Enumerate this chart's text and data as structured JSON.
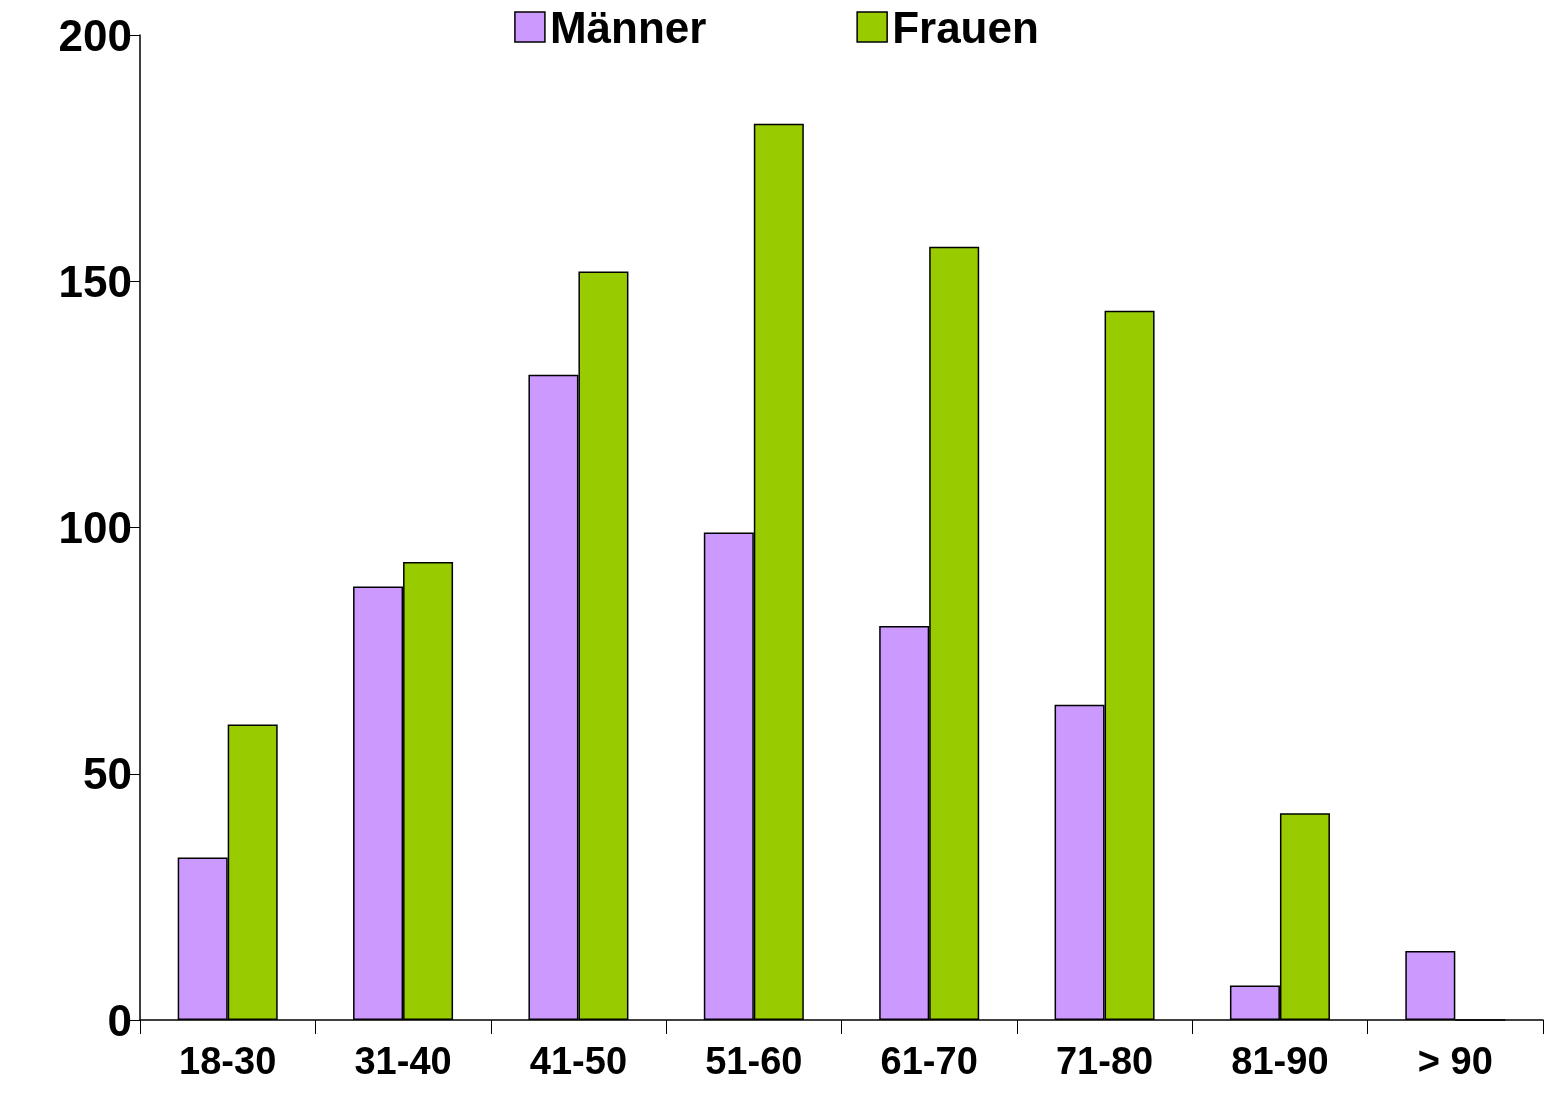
{
  "chart_data": {
    "type": "bar",
    "categories": [
      "18-30",
      "31-40",
      "41-50",
      "51-60",
      "61-70",
      "71-80",
      "81-90",
      "> 90"
    ],
    "series": [
      {
        "name": "Männer",
        "color": "#cc99ff",
        "values": [
          33,
          88,
          131,
          99,
          80,
          64,
          7,
          14
        ]
      },
      {
        "name": "Frauen",
        "color": "#99cc00",
        "values": [
          60,
          93,
          152,
          182,
          157,
          144,
          42,
          0
        ]
      }
    ],
    "ylim": [
      0,
      200
    ],
    "yticks": [
      0,
      50,
      100,
      150,
      200
    ],
    "grid": false,
    "legend": "top"
  }
}
